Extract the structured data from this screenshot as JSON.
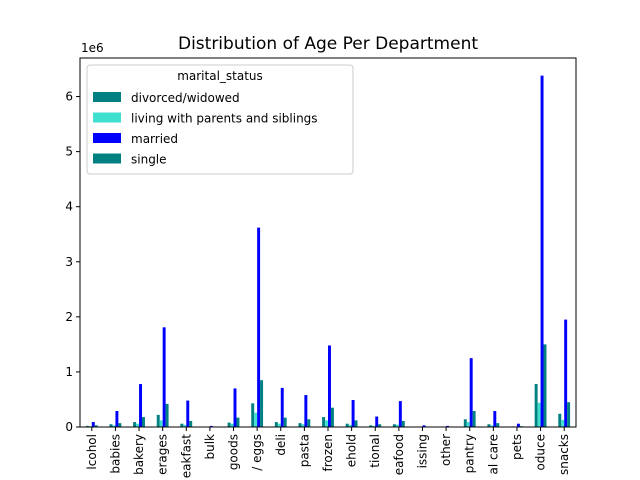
{
  "chart_data": {
    "type": "bar",
    "title": "Distribution of Age Per Department",
    "xlabel": "",
    "ylabel": "",
    "y_offset_label": "1e6",
    "ylim": [
      0,
      6.7
    ],
    "yticks": [
      0,
      1,
      2,
      3,
      4,
      5,
      6
    ],
    "grid": false,
    "legend_position": "top-left",
    "legend_title": "marital_status",
    "categories": [
      "alcohol",
      "babies",
      "bakery",
      "beverages",
      "breakfast",
      "bulk",
      "canned goods",
      "dairy eggs",
      "deli",
      "dry goods pasta",
      "frozen",
      "household",
      "international",
      "meat seafood",
      "missing",
      "other",
      "pantry",
      "personal care",
      "pets",
      "produce",
      "snacks"
    ],
    "tick_labels": [
      "lcohol",
      "babies",
      "bakery",
      "erages",
      "eakfast",
      "bulk",
      "goods",
      "/ eggs",
      "deli",
      "pasta",
      "frozen",
      "ehold",
      "tional",
      "eafood",
      "issing",
      "other",
      "pantry",
      "al care",
      "pets",
      "oduce",
      "snacks"
    ],
    "series": [
      {
        "name": "divorced/widowed",
        "color": "#008080",
        "values": [
          0.02,
          0.05,
          0.09,
          0.22,
          0.06,
          0.005,
          0.08,
          0.43,
          0.09,
          0.07,
          0.18,
          0.06,
          0.03,
          0.05,
          0.008,
          0.005,
          0.14,
          0.05,
          0.01,
          0.78,
          0.24
        ]
      },
      {
        "name": "living with parents and siblings",
        "color": "#40E0D0",
        "values": [
          0.015,
          0.03,
          0.06,
          0.12,
          0.04,
          0.003,
          0.06,
          0.26,
          0.06,
          0.05,
          0.12,
          0.04,
          0.02,
          0.04,
          0.005,
          0.004,
          0.09,
          0.03,
          0.006,
          0.44,
          0.13
        ]
      },
      {
        "name": "married",
        "color": "#0000FF",
        "values": [
          0.09,
          0.29,
          0.78,
          1.81,
          0.48,
          0.02,
          0.7,
          3.62,
          0.71,
          0.58,
          1.48,
          0.49,
          0.19,
          0.47,
          0.03,
          0.02,
          1.25,
          0.29,
          0.06,
          6.38,
          1.95
        ]
      },
      {
        "name": "single",
        "color": "#008080",
        "values": [
          0.03,
          0.07,
          0.18,
          0.42,
          0.11,
          0.006,
          0.17,
          0.85,
          0.17,
          0.14,
          0.35,
          0.12,
          0.05,
          0.11,
          0.01,
          0.006,
          0.29,
          0.07,
          0.015,
          1.5,
          0.45
        ]
      }
    ]
  }
}
